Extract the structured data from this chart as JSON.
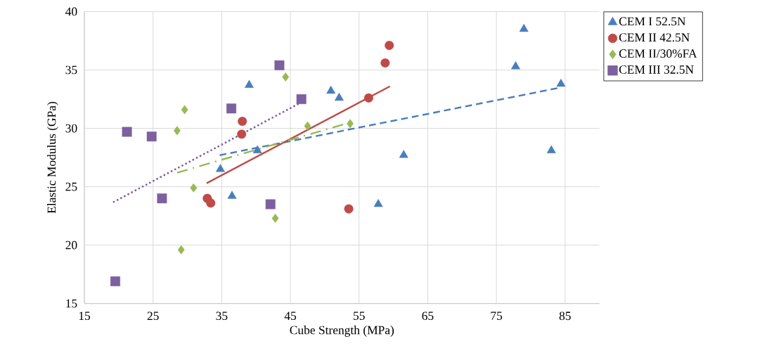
{
  "chart_data": {
    "type": "scatter",
    "xlabel": "Cube Strength (MPa)",
    "ylabel": "Elastic Modulus (GPa)",
    "xlim": [
      15,
      90
    ],
    "ylim": [
      15,
      40
    ],
    "xticks": [
      15,
      25,
      35,
      45,
      55,
      65,
      75,
      85
    ],
    "yticks": [
      15,
      20,
      25,
      30,
      35,
      40
    ],
    "grid": true,
    "legend": "right",
    "series": [
      {
        "name": "CEM I  52.5N",
        "marker": "triangle",
        "color": "#4a7ebb",
        "x": [
          39.0,
          34.8,
          36.5,
          40.2,
          50.9,
          52.1,
          61.5,
          57.8,
          77.8,
          79.0,
          84.4,
          83.0
        ],
        "values": [
          33.7,
          26.5,
          24.2,
          28.1,
          33.2,
          32.6,
          27.7,
          23.5,
          35.3,
          38.5,
          33.8,
          28.1
        ]
      },
      {
        "name": "CEM II 42.5N",
        "marker": "circle",
        "color": "#be4b48",
        "x": [
          32.9,
          33.4,
          38.0,
          37.9,
          53.5,
          56.4,
          58.8,
          59.4
        ],
        "values": [
          24.0,
          23.6,
          30.6,
          29.5,
          23.1,
          32.6,
          35.6,
          37.1
        ]
      },
      {
        "name": "CEM II/30%FA",
        "marker": "diamond",
        "color": "#98b954",
        "x": [
          29.6,
          28.5,
          30.9,
          29.1,
          42.8,
          44.3,
          47.5,
          53.7
        ],
        "values": [
          31.6,
          29.8,
          24.9,
          19.6,
          22.3,
          34.4,
          30.2,
          30.4
        ]
      },
      {
        "name": "CEM III 32.5N",
        "marker": "square",
        "color": "#7d60a0",
        "x": [
          21.2,
          24.8,
          26.3,
          19.5,
          36.4,
          42.1,
          43.4,
          46.6
        ],
        "values": [
          29.7,
          29.3,
          24.0,
          16.9,
          31.7,
          23.5,
          35.4,
          32.5
        ]
      },
      {
        "type": "line",
        "line_style": "dashed",
        "color": "#4a7ebb",
        "x": [
          34.7,
          84.4
        ],
        "values": [
          27.7,
          33.5
        ]
      },
      {
        "type": "line",
        "line_style": "solid",
        "color": "#be4b48",
        "x": [
          32.8,
          59.5
        ],
        "values": [
          25.3,
          33.6
        ]
      },
      {
        "type": "line",
        "line_style": "dashdot",
        "color": "#98b954",
        "x": [
          28.5,
          53.7
        ],
        "values": [
          26.2,
          30.5
        ]
      },
      {
        "type": "line",
        "line_style": "dotted",
        "color": "#7d60a0",
        "x": [
          19.3,
          46.2
        ],
        "values": [
          23.7,
          32.1
        ]
      }
    ]
  }
}
